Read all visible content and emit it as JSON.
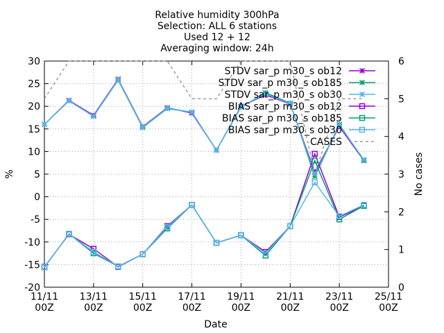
{
  "chart_data": {
    "type": "line",
    "title_lines": [
      "Relative humidity 300hPa",
      "Selection: ALL      6 stations",
      "Used 12 + 12",
      "Averaging window: 24h"
    ],
    "xlabel": "Date",
    "ylabel": "%",
    "y2label": "No cases",
    "xlim": [
      0,
      14
    ],
    "ylim": [
      -20,
      30
    ],
    "y2lim": [
      0,
      6
    ],
    "grid": true,
    "legend_position": "top-right",
    "x_ticks": [
      {
        "x": 0,
        "line1": "11/11",
        "line2": "00Z"
      },
      {
        "x": 2,
        "line1": "13/11",
        "line2": "00Z"
      },
      {
        "x": 4,
        "line1": "15/11",
        "line2": "00Z"
      },
      {
        "x": 6,
        "line1": "17/11",
        "line2": "00Z"
      },
      {
        "x": 8,
        "line1": "19/11",
        "line2": "00Z"
      },
      {
        "x": 10,
        "line1": "21/11",
        "line2": "00Z"
      },
      {
        "x": 12,
        "line1": "23/11",
        "line2": "00Z"
      },
      {
        "x": 14,
        "line1": "25/11",
        "line2": "00Z"
      }
    ],
    "y_ticks": [
      -20,
      -15,
      -10,
      -5,
      0,
      5,
      10,
      15,
      20,
      25,
      30
    ],
    "y2_ticks": [
      0,
      1,
      2,
      3,
      4,
      5,
      6
    ],
    "x": [
      0,
      1,
      2,
      3,
      4,
      5,
      6,
      7,
      8,
      9,
      10,
      11,
      12,
      13
    ],
    "series": [
      {
        "name": "STDV sar_p m30_s ob12",
        "color": "#9400d3",
        "marker": "x-star",
        "axis": "y",
        "values": [
          16,
          21.3,
          18,
          26,
          15.5,
          19.7,
          18.5,
          10.3,
          20,
          22.5,
          20.5,
          5.5,
          15.5,
          8
        ]
      },
      {
        "name": "STDV sar_p m30_s ob185",
        "color": "#009e73",
        "marker": "x-star",
        "axis": "y",
        "values": [
          16,
          21.2,
          17.8,
          25.8,
          15.3,
          19.5,
          18.7,
          10.3,
          19.8,
          23,
          20.7,
          4.5,
          16,
          8
        ]
      },
      {
        "name": "STDV sar_p m30_s ob30",
        "color": "#56b4e9",
        "marker": "x-star",
        "axis": "y",
        "values": [
          16,
          21.2,
          17.8,
          25.9,
          15.4,
          19.6,
          18.7,
          10.3,
          19.9,
          22.7,
          20.6,
          5,
          15.8,
          8.2
        ]
      },
      {
        "name": "BIAS sar_p m30_s ob12",
        "color": "#9400d3",
        "marker": "square",
        "axis": "y",
        "values": [
          -15.5,
          -8.3,
          -11.5,
          -15.5,
          -12.7,
          -6.5,
          -1.8,
          -10.2,
          -8.5,
          -12.2,
          -6.5,
          9.5,
          -4.5,
          -2
        ]
      },
      {
        "name": "BIAS sar_p m30_s ob185",
        "color": "#009e73",
        "marker": "square",
        "axis": "y",
        "values": [
          -15.6,
          -8.2,
          -12.5,
          -15.4,
          -12.7,
          -7,
          -1.8,
          -10.2,
          -8.5,
          -13,
          -6.5,
          8,
          -5,
          -2
        ]
      },
      {
        "name": "BIAS sar_p m30_s ob30",
        "color": "#56b4e9",
        "marker": "square",
        "axis": "y",
        "values": [
          -15.6,
          -8.2,
          -12.2,
          -15.4,
          -12.7,
          -6.7,
          -1.8,
          -10.2,
          -8.5,
          -12.5,
          -6.5,
          3.2,
          -4.3,
          -1.8
        ]
      },
      {
        "name": "CASES",
        "color": "#999999",
        "marker": "none",
        "dashed": true,
        "axis": "y2",
        "values": [
          5,
          6,
          6,
          6,
          6,
          6,
          5,
          5,
          6,
          6,
          6,
          3,
          5,
          5
        ]
      }
    ]
  }
}
